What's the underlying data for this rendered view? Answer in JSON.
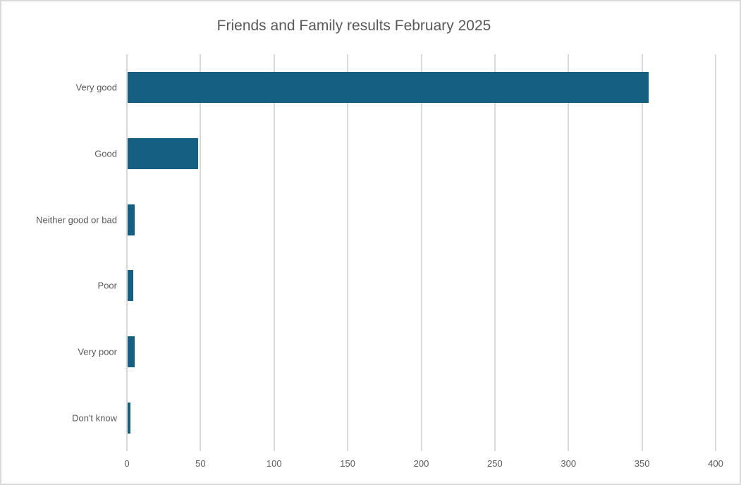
{
  "chart": {
    "colors": {
      "bar": "#156082",
      "gridline": "#d9d9d9",
      "axis_line": "#d9d9d9",
      "text": "#595959",
      "border": "#d9d9d9",
      "background": "#ffffff"
    }
  },
  "chart_data": {
    "type": "bar",
    "orientation": "horizontal",
    "title": "Friends and Family results February 2025",
    "categories": [
      "Very good",
      "Good",
      "Neither good or bad",
      "Poor",
      "Very poor",
      "Don't know"
    ],
    "values": [
      354,
      48,
      5,
      4,
      5,
      2
    ],
    "xlabel": "",
    "ylabel": "",
    "xlim": [
      0,
      400
    ],
    "xticks": [
      0,
      50,
      100,
      150,
      200,
      250,
      300,
      350,
      400
    ],
    "grid": true,
    "legend": false
  }
}
